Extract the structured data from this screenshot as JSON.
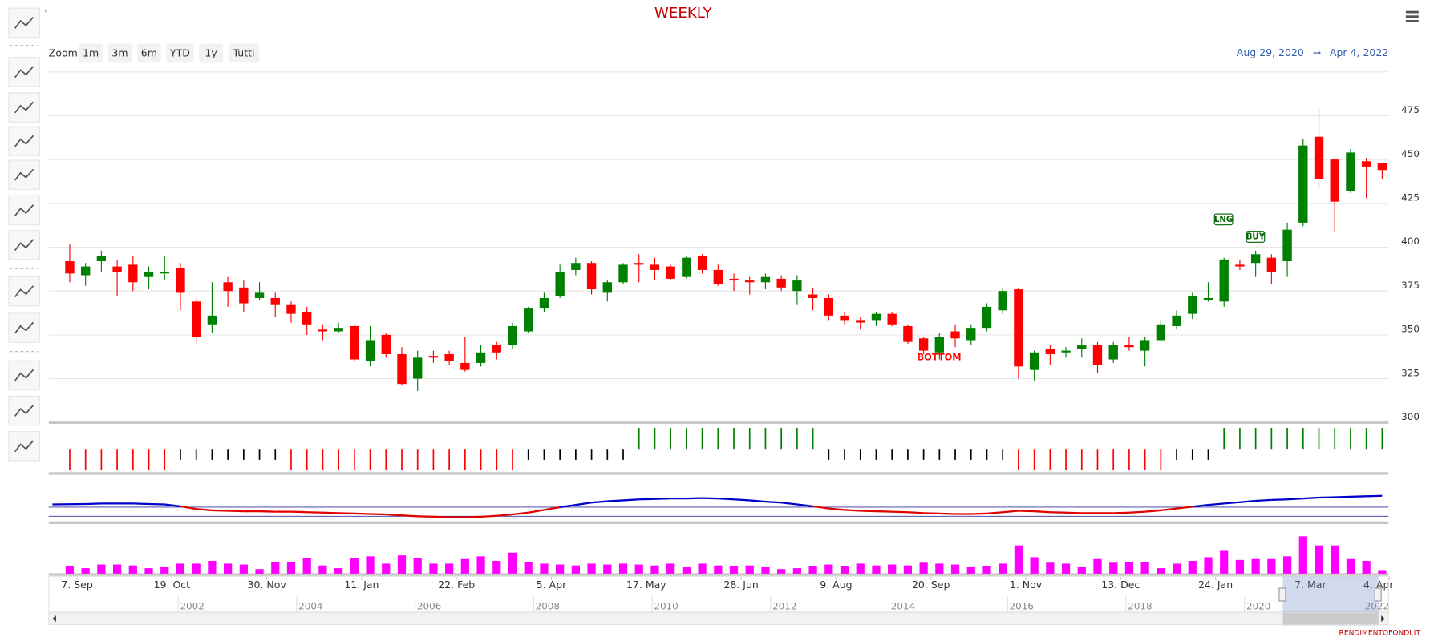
{
  "chart_data": {
    "type": "candlestick",
    "title": "WEEKLY",
    "zoom_label": "Zoom",
    "zoom_buttons": [
      "1m",
      "3m",
      "6m",
      "YTD",
      "1y",
      "Tutti"
    ],
    "range_from": "Aug 29, 2020",
    "range_arrow": "→",
    "range_to": "Apr 4, 2022",
    "credit": "RENDIMENTOFONDI.IT",
    "categories": [
      "7. Sep",
      null,
      null,
      null,
      null,
      null,
      "19. Oct",
      null,
      null,
      null,
      null,
      null,
      "30. Nov",
      null,
      null,
      null,
      null,
      null,
      "11. Jan",
      null,
      null,
      null,
      null,
      null,
      "22. Feb",
      null,
      null,
      null,
      null,
      null,
      "5. Apr",
      null,
      null,
      null,
      null,
      null,
      "17. May",
      null,
      null,
      null,
      null,
      null,
      "28. Jun",
      null,
      null,
      null,
      null,
      null,
      "9. Aug",
      null,
      null,
      null,
      null,
      null,
      "20. Sep",
      null,
      null,
      null,
      null,
      null,
      "1. Nov",
      null,
      null,
      null,
      null,
      null,
      "13. Dec",
      null,
      null,
      null,
      null,
      null,
      "24. Jan",
      null,
      null,
      null,
      null,
      null,
      "7. Mar",
      null,
      null,
      null,
      null,
      "4. Apr"
    ],
    "open": [
      392,
      384,
      392,
      389,
      390,
      383,
      385,
      388,
      369,
      356,
      380,
      377,
      371,
      371,
      367,
      363,
      353,
      352,
      355,
      335,
      350,
      339,
      325,
      338,
      339,
      334,
      334,
      344,
      344,
      352,
      365,
      372,
      387,
      391,
      374,
      380,
      391,
      390,
      389,
      383,
      395,
      387,
      382,
      381,
      380,
      382,
      375,
      373,
      371,
      361,
      358,
      358,
      362,
      355,
      348,
      340,
      352,
      347,
      354,
      364,
      376,
      330,
      342,
      340,
      342,
      344,
      336,
      344,
      341,
      347,
      355,
      362,
      370,
      369,
      390,
      391,
      394,
      392,
      414,
      463,
      450,
      432,
      449,
      448
    ],
    "high": [
      402,
      391,
      398,
      393,
      395,
      389,
      395,
      391,
      371,
      380,
      383,
      381,
      380,
      374,
      369,
      366,
      356,
      357,
      356,
      355,
      351,
      343,
      341,
      341,
      341,
      349,
      344,
      346,
      357,
      366,
      374,
      390,
      394,
      392,
      381,
      391,
      396,
      394,
      390,
      395,
      396,
      390,
      385,
      383,
      385,
      384,
      384,
      377,
      373,
      363,
      360,
      363,
      363,
      356,
      349,
      351,
      356,
      356,
      368,
      377,
      377,
      341,
      344,
      343,
      348,
      346,
      346,
      349,
      349,
      358,
      364,
      374,
      380,
      394,
      393,
      398,
      396,
      414,
      462,
      479,
      451,
      456,
      451,
      448
    ],
    "low": [
      380,
      378,
      386,
      372,
      375,
      376,
      381,
      364,
      345,
      351,
      366,
      363,
      370,
      360,
      357,
      350,
      347,
      351,
      335,
      332,
      337,
      321,
      318,
      334,
      333,
      329,
      332,
      336,
      342,
      351,
      363,
      371,
      384,
      373,
      369,
      379,
      380,
      381,
      381,
      382,
      385,
      378,
      375,
      373,
      376,
      375,
      367,
      364,
      358,
      356,
      353,
      355,
      355,
      345,
      339,
      336,
      343,
      344,
      352,
      362,
      325,
      324,
      333,
      337,
      337,
      328,
      334,
      341,
      332,
      346,
      353,
      359,
      369,
      366,
      387,
      383,
      379,
      383,
      412,
      433,
      409,
      431,
      428,
      439
    ],
    "close": [
      385,
      389,
      395,
      386,
      380,
      386,
      386,
      374,
      349,
      361,
      375,
      368,
      374,
      367,
      362,
      356,
      352,
      354,
      336,
      347,
      339,
      322,
      337,
      337,
      335,
      330,
      340,
      340,
      355,
      365,
      371,
      386,
      391,
      376,
      380,
      390,
      390,
      387,
      382,
      394,
      387,
      379,
      381,
      380,
      383,
      377,
      381,
      371,
      361,
      358,
      357,
      362,
      356,
      346,
      341,
      349,
      348,
      354,
      366,
      375,
      332,
      340,
      339,
      341,
      344,
      333,
      344,
      343,
      347,
      356,
      361,
      372,
      371,
      393,
      389,
      396,
      386,
      410,
      458,
      439,
      426,
      454,
      446,
      444
    ],
    "up_color": "#008000",
    "down_color": "#ff0000",
    "ylim": [
      300,
      500
    ],
    "yticks": [
      300,
      325,
      350,
      375,
      400,
      425,
      450,
      475
    ],
    "grid": true,
    "annotations": [
      "BOTTOM",
      "LNG",
      "BUY"
    ],
    "signal": {
      "values": [
        -1,
        -1,
        -1,
        -1,
        -1,
        -1,
        -1,
        0,
        0,
        0,
        0,
        0,
        0,
        0,
        -1,
        -1,
        -1,
        -1,
        -1,
        -1,
        -1,
        -1,
        -1,
        -1,
        -1,
        -1,
        -1,
        -1,
        -1,
        0,
        0,
        0,
        0,
        0,
        0,
        0,
        1,
        1,
        1,
        1,
        1,
        1,
        1,
        1,
        1,
        1,
        1,
        1,
        0,
        0,
        0,
        0,
        0,
        0,
        0,
        0,
        0,
        0,
        0,
        0,
        -1,
        -1,
        -1,
        -1,
        -1,
        -1,
        -1,
        -1,
        -1,
        -1,
        0,
        0,
        0,
        1,
        1,
        1,
        1,
        1,
        1,
        1,
        1,
        1,
        1,
        1
      ],
      "colors": {
        "1": "#008000",
        "0": "#000000",
        "-1": "#ff0000"
      }
    },
    "oscillator": {
      "values": [
        3,
        3.5,
        4,
        4,
        4,
        3.5,
        3,
        1,
        -2,
        -3.5,
        -4,
        -4.5,
        -4.5,
        -5,
        -5,
        -5.5,
        -6,
        -6.5,
        -7,
        -7.5,
        -8,
        -9,
        -10,
        -10.5,
        -11,
        -11,
        -10.5,
        -9.5,
        -8,
        -6,
        -3,
        0,
        2.5,
        5,
        6.5,
        7.5,
        8.5,
        9,
        9.5,
        9.5,
        10,
        9.5,
        8.5,
        7.5,
        6,
        5,
        3,
        1,
        -1.5,
        -3,
        -4,
        -4.5,
        -5,
        -5.5,
        -6.5,
        -7,
        -7.5,
        -7.5,
        -7,
        -5.5,
        -4,
        -4.5,
        -5.5,
        -6,
        -6.5,
        -6.5,
        -6.5,
        -6,
        -5,
        -3.5,
        -1.5,
        0.5,
        2.5,
        4,
        5.5,
        7,
        8,
        8.5,
        9.5,
        10.5,
        11,
        11.5,
        12,
        12.5
      ],
      "ylim": [
        -13,
        13
      ],
      "levels": [
        -10,
        0,
        10
      ],
      "pos_color": "#0000cc",
      "neg_color": "#e00000"
    },
    "volume": {
      "values": [
        8,
        6,
        10,
        10,
        9,
        6,
        7,
        11,
        11,
        14,
        11,
        10,
        5,
        13,
        13,
        17,
        9,
        6,
        17,
        19,
        11,
        20,
        17,
        11,
        11,
        16,
        19,
        14,
        23,
        13,
        11,
        10,
        9,
        11,
        10,
        11,
        10,
        9,
        11,
        7,
        11,
        9,
        8,
        9,
        7,
        5,
        6,
        8,
        10,
        8,
        11,
        9,
        10,
        9,
        12,
        11,
        10,
        7,
        8,
        11,
        31,
        18,
        12,
        11,
        7,
        16,
        12,
        13,
        13,
        6,
        11,
        14,
        18,
        25,
        15,
        16,
        16,
        19,
        41,
        31,
        31,
        16,
        14,
        3
      ],
      "ylim": [
        0,
        50
      ],
      "color": "#ff00ff"
    },
    "navigator_labels": [
      "2002",
      "2004",
      "2006",
      "2008",
      "2010",
      "2012",
      "2014",
      "2016",
      "2018",
      "2020",
      "2022"
    ]
  }
}
